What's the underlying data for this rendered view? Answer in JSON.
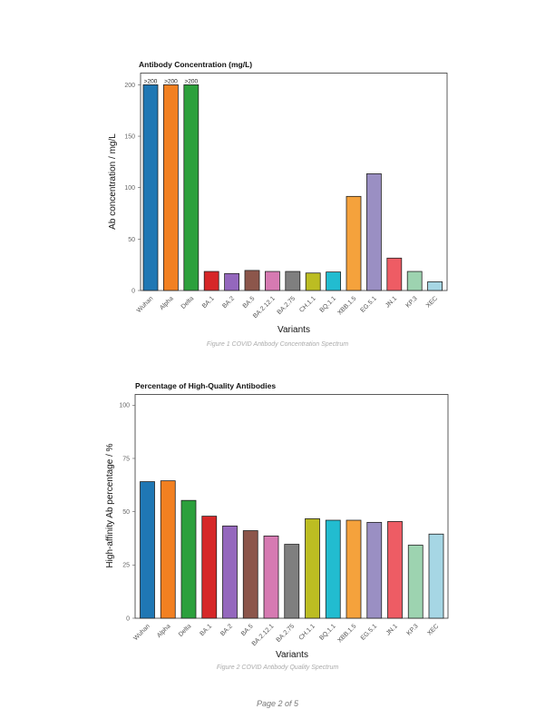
{
  "chart_data": [
    {
      "type": "bar",
      "title": "Antibody Concentration (mg/L)",
      "xlabel": "Variants",
      "ylabel": "Ab concentration / mg/L",
      "caption": "Figure 1 COVID Antibody Concentration Spectrum",
      "ylim": [
        0,
        210
      ],
      "yticks": [
        0,
        50,
        100,
        150,
        200
      ],
      "categories": [
        "Wuhan",
        "Alpha",
        "Delta",
        "BA.1",
        "BA.2",
        "BA.5",
        "BA.2.12.1",
        "BA.2.75",
        "CH.1.1",
        "BQ.1.1",
        "XBB.1.5",
        "EG.5.1",
        "JN.1",
        "KP.3",
        "XEC"
      ],
      "values": [
        200,
        200,
        200,
        18.5,
        16.5,
        19.5,
        18.5,
        18.5,
        17,
        18,
        91.5,
        113.5,
        31.5,
        18.5,
        8.5
      ],
      "data_labels": [
        ">200",
        ">200",
        ">200",
        "",
        "",
        "",
        "",
        "",
        "",
        "",
        "",
        "",
        "",
        "",
        ""
      ],
      "grid": false,
      "legend": "none"
    },
    {
      "type": "bar",
      "title": "Percentage of High-Quality Antibodies",
      "xlabel": "Variants",
      "ylabel": "High-affinity Ab percentage / %",
      "caption": "Figure 2 COVID Antibody Quality Spectrum",
      "ylim": [
        0,
        105
      ],
      "yticks": [
        0,
        25,
        50,
        75,
        100
      ],
      "categories": [
        "Wuhan",
        "Alpha",
        "Delta",
        "BA.1",
        "BA.2",
        "BA.5",
        "BA.2.12.1",
        "BA.2.75",
        "CH.1.1",
        "BQ.1.1",
        "XBB.1.5",
        "EG.5.1",
        "JN.1",
        "KP.3",
        "XEC"
      ],
      "values": [
        64.1,
        64.5,
        55.3,
        47.9,
        43.3,
        41.1,
        38.6,
        34.7,
        46.7,
        46.0,
        46.0,
        45.0,
        45.4,
        34.3,
        39.5
      ],
      "grid": false,
      "legend": "none"
    }
  ],
  "colors": [
    "#1f77b4",
    "#f28021",
    "#2ca03c",
    "#d62728",
    "#9467bd",
    "#8c564b",
    "#d67ab2",
    "#7f7f7f",
    "#bcbd22",
    "#22bcd0",
    "#f5a23c",
    "#9a8fc3",
    "#ee5c64",
    "#9dd3b0",
    "#a6d6e4"
  ],
  "footer": {
    "page": "Page 2 of 5"
  }
}
